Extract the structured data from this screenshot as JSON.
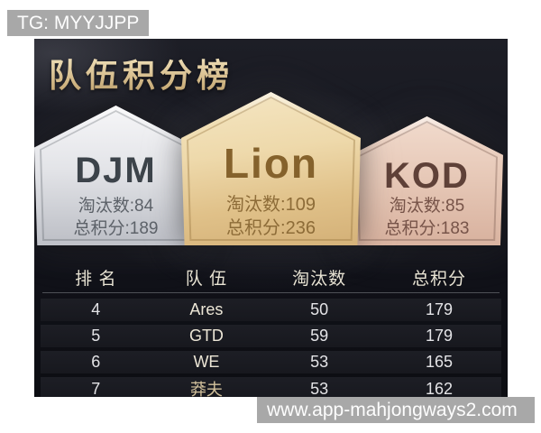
{
  "watermark_top": {
    "text": "TG: MYYJJPP"
  },
  "watermark_bottom": {
    "text": "www.app-mahjongways2.com"
  },
  "header": {
    "title": "队伍积分榜"
  },
  "podium": [
    {
      "medal": "silver",
      "name": "DJM",
      "eliminations": "淘汰数:84",
      "total_points": "总积分:189"
    },
    {
      "medal": "gold",
      "name": "Lion",
      "eliminations": "淘汰数:109",
      "total_points": "总积分:236"
    },
    {
      "medal": "bronze",
      "name": "KOD",
      "eliminations": "淘汰数:85",
      "total_points": "总积分:183"
    }
  ],
  "table": {
    "headers": [
      "排 名",
      "队 伍",
      "淘汰数",
      "总积分"
    ],
    "rows": [
      {
        "rank": "4",
        "team": "Ares",
        "eliminations": "50",
        "points": "179",
        "accent": false
      },
      {
        "rank": "5",
        "team": "GTD",
        "eliminations": "59",
        "points": "179",
        "accent": false
      },
      {
        "rank": "6",
        "team": "WE",
        "eliminations": "53",
        "points": "165",
        "accent": false
      },
      {
        "rank": "7",
        "team": "莽夫",
        "eliminations": "53",
        "points": "162",
        "accent": true
      }
    ]
  },
  "colors": {
    "title_gold": "#d8c499",
    "silver_badge": "#dcdde0",
    "gold_badge": "#e6cd9a",
    "bronze_badge": "#e5c6b5",
    "panel_background": "#14151c",
    "watermark_gray": "#a8a8a8"
  }
}
